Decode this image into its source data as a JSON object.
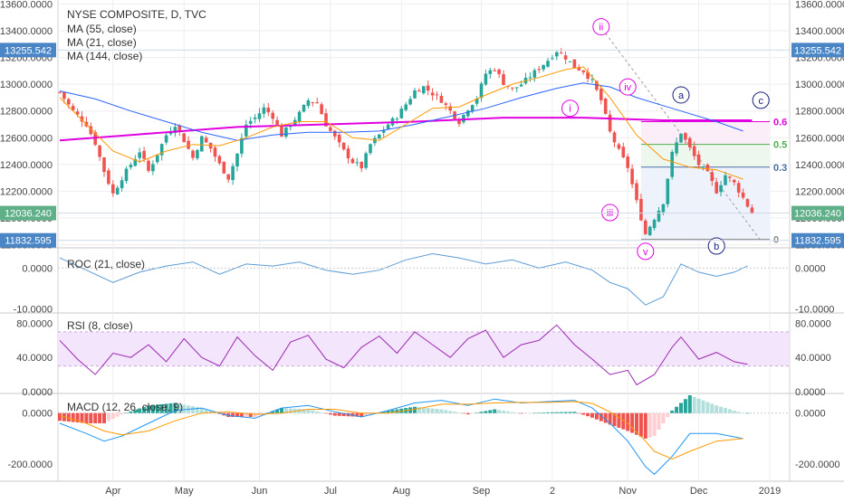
{
  "colors": {
    "up": "#26a69a",
    "down": "#ef5350",
    "ma55": "#2962ff",
    "ma21": "#ff9800",
    "ma144": "#e000e0",
    "roc": "#5b9bd5",
    "rsi": "#9c27b0",
    "rsi_band": "#f3e5fb",
    "macd_line": "#2196f3",
    "signal_line": "#ff9800",
    "hist_pos_strong": "#26a69a",
    "hist_pos_weak": "#b2dfdb",
    "hist_neg_strong": "#ef5350",
    "hist_neg_weak": "#ffcdd2",
    "fib_0": "#888888",
    "fib_382": "#4a6fa5",
    "fib_5": "#4caf50",
    "fib_618": "#e000e0",
    "wave_magenta": "#e000e0",
    "wave_navy": "#1a237e",
    "price_tag_blue": "#4a86c5",
    "price_tag_green": "#5fb089",
    "grid": "#eeeeee"
  },
  "chart_data": [
    {
      "type": "candlestick",
      "title": "NYSE COMPOSITE, D, TVC",
      "legend": [
        "MA (55, close)",
        "MA (21, close)",
        "MA (144, close)"
      ],
      "x_tick_labels": [
        "Apr",
        "May",
        "Jun",
        "Jul",
        "Aug",
        "Sep",
        "2",
        "Nov",
        "Dec",
        "2019"
      ],
      "y_tick_labels": [
        "13600.0000",
        "13400.0000",
        "13200.0000",
        "13000.0000",
        "12800.0000",
        "12600.0000",
        "12400.0000",
        "12200.0000",
        "12000.0000",
        "11800.0000"
      ],
      "ylim": [
        11790,
        13630
      ],
      "y_step": 200,
      "price_tags": [
        {
          "label": "13255.542",
          "value": 13255.542,
          "color": "price_tag_blue"
        },
        {
          "label": "12036.240",
          "value": 12036.24,
          "color": "price_tag_green"
        },
        {
          "label": "11832.595",
          "value": 11832.595,
          "color": "price_tag_blue"
        }
      ],
      "close_path": [
        [
          0,
          12940
        ],
        [
          3,
          12800
        ],
        [
          6,
          12700
        ],
        [
          8,
          12560
        ],
        [
          10,
          12350
        ],
        [
          12,
          12180
        ],
        [
          14,
          12300
        ],
        [
          16,
          12400
        ],
        [
          18,
          12500
        ],
        [
          20,
          12350
        ],
        [
          22,
          12480
        ],
        [
          24,
          12620
        ],
        [
          26,
          12700
        ],
        [
          28,
          12580
        ],
        [
          30,
          12450
        ],
        [
          32,
          12600
        ],
        [
          34,
          12520
        ],
        [
          36,
          12400
        ],
        [
          38,
          12300
        ],
        [
          40,
          12480
        ],
        [
          42,
          12700
        ],
        [
          44,
          12750
        ],
        [
          46,
          12820
        ],
        [
          48,
          12760
        ],
        [
          50,
          12620
        ],
        [
          52,
          12700
        ],
        [
          54,
          12780
        ],
        [
          56,
          12880
        ],
        [
          58,
          12860
        ],
        [
          60,
          12700
        ],
        [
          62,
          12600
        ],
        [
          64,
          12500
        ],
        [
          66,
          12420
        ],
        [
          68,
          12380
        ],
        [
          70,
          12550
        ],
        [
          72,
          12620
        ],
        [
          74,
          12700
        ],
        [
          76,
          12760
        ],
        [
          78,
          12850
        ],
        [
          80,
          12950
        ],
        [
          82,
          12980
        ],
        [
          84,
          12930
        ],
        [
          86,
          12880
        ],
        [
          88,
          12800
        ],
        [
          90,
          12720
        ],
        [
          92,
          12820
        ],
        [
          94,
          12900
        ],
        [
          96,
          13080
        ],
        [
          98,
          13120
        ],
        [
          100,
          13010
        ],
        [
          102,
          12960
        ],
        [
          104,
          13000
        ],
        [
          106,
          13060
        ],
        [
          108,
          13120
        ],
        [
          110,
          13180
        ],
        [
          112,
          13250
        ],
        [
          114,
          13200
        ],
        [
          116,
          13130
        ],
        [
          118,
          13100
        ],
        [
          120,
          13020
        ],
        [
          122,
          12880
        ],
        [
          124,
          12640
        ],
        [
          126,
          12500
        ],
        [
          128,
          12380
        ],
        [
          130,
          12120
        ],
        [
          132,
          11880
        ],
        [
          134,
          12000
        ],
        [
          136,
          12120
        ],
        [
          138,
          12480
        ],
        [
          140,
          12640
        ],
        [
          142,
          12520
        ],
        [
          144,
          12400
        ],
        [
          146,
          12330
        ],
        [
          148,
          12200
        ],
        [
          150,
          12320
        ],
        [
          152,
          12260
        ],
        [
          154,
          12150
        ],
        [
          156,
          12036
        ]
      ],
      "ma55_path": [
        [
          0,
          12950
        ],
        [
          8,
          12890
        ],
        [
          16,
          12800
        ],
        [
          24,
          12720
        ],
        [
          32,
          12640
        ],
        [
          40,
          12580
        ],
        [
          48,
          12620
        ],
        [
          56,
          12640
        ],
        [
          64,
          12640
        ],
        [
          72,
          12650
        ],
        [
          80,
          12700
        ],
        [
          88,
          12760
        ],
        [
          96,
          12820
        ],
        [
          104,
          12900
        ],
        [
          112,
          12970
        ],
        [
          118,
          13010
        ],
        [
          124,
          12980
        ],
        [
          130,
          12900
        ],
        [
          136,
          12840
        ],
        [
          142,
          12780
        ],
        [
          148,
          12720
        ],
        [
          154,
          12650
        ]
      ],
      "ma21_path": [
        [
          0,
          12900
        ],
        [
          6,
          12700
        ],
        [
          12,
          12500
        ],
        [
          18,
          12420
        ],
        [
          24,
          12500
        ],
        [
          30,
          12550
        ],
        [
          36,
          12540
        ],
        [
          42,
          12600
        ],
        [
          48,
          12680
        ],
        [
          54,
          12720
        ],
        [
          60,
          12720
        ],
        [
          66,
          12600
        ],
        [
          72,
          12580
        ],
        [
          78,
          12700
        ],
        [
          84,
          12820
        ],
        [
          90,
          12830
        ],
        [
          96,
          12920
        ],
        [
          102,
          13000
        ],
        [
          108,
          13050
        ],
        [
          114,
          13110
        ],
        [
          118,
          13130
        ],
        [
          124,
          12900
        ],
        [
          130,
          12620
        ],
        [
          136,
          12440
        ],
        [
          142,
          12380
        ],
        [
          148,
          12360
        ],
        [
          154,
          12290
        ]
      ],
      "ma144_path": [
        [
          0,
          12580
        ],
        [
          20,
          12630
        ],
        [
          40,
          12680
        ],
        [
          60,
          12700
        ],
        [
          80,
          12720
        ],
        [
          100,
          12750
        ],
        [
          118,
          12750
        ],
        [
          136,
          12730
        ],
        [
          156,
          12730
        ]
      ],
      "fib_levels": [
        {
          "label": "0",
          "value": 11840,
          "color": "fib_0"
        },
        {
          "label": "0.3",
          "value": 12380,
          "color": "fib_382"
        },
        {
          "label": "0.5",
          "value": 12550,
          "color": "fib_5"
        },
        {
          "label": "0.6",
          "value": 12720,
          "color": "fib_618"
        }
      ],
      "wave_labels": [
        {
          "label": "ii",
          "x": 122,
          "value": 13430,
          "style": "wave_magenta"
        },
        {
          "label": "i",
          "x": 115,
          "value": 12820,
          "style": "wave_magenta"
        },
        {
          "label": "iv",
          "x": 128,
          "value": 12980,
          "style": "wave_magenta"
        },
        {
          "label": "iii",
          "x": 124,
          "value": 12040,
          "style": "wave_magenta"
        },
        {
          "label": "v",
          "x": 132,
          "value": 11750,
          "style": "wave_magenta"
        },
        {
          "label": "a",
          "x": 140,
          "value": 12920,
          "style": "wave_navy"
        },
        {
          "label": "c",
          "x": 158,
          "value": 12880,
          "style": "wave_navy"
        },
        {
          "label": "b",
          "x": 148,
          "value": 11790,
          "style": "wave_navy"
        }
      ]
    },
    {
      "type": "line",
      "title": "ROC (21, close)",
      "y_tick_labels": [
        "0.0000",
        "-10.0000"
      ],
      "ylim": [
        -10.5,
        4.5
      ],
      "path": [
        [
          0,
          2.5
        ],
        [
          6,
          -0.5
        ],
        [
          12,
          -3.5
        ],
        [
          18,
          -1
        ],
        [
          24,
          0.5
        ],
        [
          30,
          1.5
        ],
        [
          36,
          -1.5
        ],
        [
          42,
          1
        ],
        [
          48,
          0.5
        ],
        [
          54,
          1.5
        ],
        [
          60,
          -0.5
        ],
        [
          66,
          -1.5
        ],
        [
          72,
          -0.5
        ],
        [
          78,
          2
        ],
        [
          84,
          3.5
        ],
        [
          90,
          2.5
        ],
        [
          96,
          1
        ],
        [
          102,
          2
        ],
        [
          108,
          0
        ],
        [
          114,
          1.5
        ],
        [
          120,
          -0.5
        ],
        [
          124,
          -3.5
        ],
        [
          128,
          -5
        ],
        [
          132,
          -9
        ],
        [
          136,
          -7
        ],
        [
          140,
          1
        ],
        [
          144,
          -1
        ],
        [
          148,
          -2
        ],
        [
          152,
          -1
        ],
        [
          155,
          0.5
        ]
      ]
    },
    {
      "type": "line",
      "title": "RSI (8, close)",
      "y_tick_labels": [
        "80.0000",
        "40.0000",
        "0.0000"
      ],
      "ylim": [
        0,
        90
      ],
      "band": [
        30,
        70
      ],
      "path": [
        [
          0,
          60
        ],
        [
          4,
          38
        ],
        [
          8,
          20
        ],
        [
          12,
          45
        ],
        [
          16,
          40
        ],
        [
          20,
          55
        ],
        [
          24,
          35
        ],
        [
          28,
          62
        ],
        [
          32,
          40
        ],
        [
          36,
          30
        ],
        [
          40,
          64
        ],
        [
          44,
          42
        ],
        [
          48,
          25
        ],
        [
          52,
          58
        ],
        [
          56,
          66
        ],
        [
          60,
          38
        ],
        [
          64,
          28
        ],
        [
          68,
          52
        ],
        [
          72,
          65
        ],
        [
          76,
          45
        ],
        [
          80,
          70
        ],
        [
          84,
          55
        ],
        [
          88,
          40
        ],
        [
          92,
          62
        ],
        [
          96,
          72
        ],
        [
          100,
          40
        ],
        [
          104,
          55
        ],
        [
          108,
          60
        ],
        [
          112,
          78
        ],
        [
          116,
          55
        ],
        [
          120,
          38
        ],
        [
          124,
          20
        ],
        [
          128,
          25
        ],
        [
          130,
          8
        ],
        [
          134,
          20
        ],
        [
          138,
          52
        ],
        [
          140,
          64
        ],
        [
          144,
          38
        ],
        [
          148,
          46
        ],
        [
          152,
          35
        ],
        [
          155,
          32
        ]
      ]
    },
    {
      "type": "bar+line",
      "title": "MACD (12, 26, close, 9)",
      "y_tick_labels": [
        "0.0000",
        "-200.0000"
      ],
      "ylim": [
        -260,
        70
      ],
      "macd": [
        [
          0,
          -40
        ],
        [
          6,
          -80
        ],
        [
          10,
          -110
        ],
        [
          14,
          -90
        ],
        [
          20,
          -40
        ],
        [
          26,
          10
        ],
        [
          32,
          20
        ],
        [
          38,
          -10
        ],
        [
          44,
          -20
        ],
        [
          50,
          20
        ],
        [
          56,
          30
        ],
        [
          62,
          5
        ],
        [
          68,
          -15
        ],
        [
          74,
          10
        ],
        [
          80,
          40
        ],
        [
          86,
          50
        ],
        [
          92,
          30
        ],
        [
          98,
          55
        ],
        [
          104,
          40
        ],
        [
          110,
          45
        ],
        [
          116,
          50
        ],
        [
          120,
          20
        ],
        [
          124,
          -40
        ],
        [
          128,
          -110
        ],
        [
          132,
          -210
        ],
        [
          134,
          -240
        ],
        [
          138,
          -170
        ],
        [
          142,
          -80
        ],
        [
          148,
          -80
        ],
        [
          154,
          -100
        ]
      ],
      "signal": [
        [
          0,
          -10
        ],
        [
          6,
          -40
        ],
        [
          10,
          -70
        ],
        [
          14,
          -85
        ],
        [
          20,
          -70
        ],
        [
          26,
          -30
        ],
        [
          32,
          0
        ],
        [
          38,
          5
        ],
        [
          44,
          -5
        ],
        [
          50,
          0
        ],
        [
          56,
          15
        ],
        [
          62,
          15
        ],
        [
          68,
          0
        ],
        [
          74,
          0
        ],
        [
          80,
          15
        ],
        [
          86,
          35
        ],
        [
          92,
          35
        ],
        [
          98,
          40
        ],
        [
          104,
          42
        ],
        [
          110,
          42
        ],
        [
          116,
          45
        ],
        [
          120,
          38
        ],
        [
          124,
          5
        ],
        [
          128,
          -40
        ],
        [
          132,
          -110
        ],
        [
          134,
          -150
        ],
        [
          138,
          -180
        ],
        [
          142,
          -150
        ],
        [
          148,
          -110
        ],
        [
          154,
          -100
        ]
      ]
    }
  ]
}
